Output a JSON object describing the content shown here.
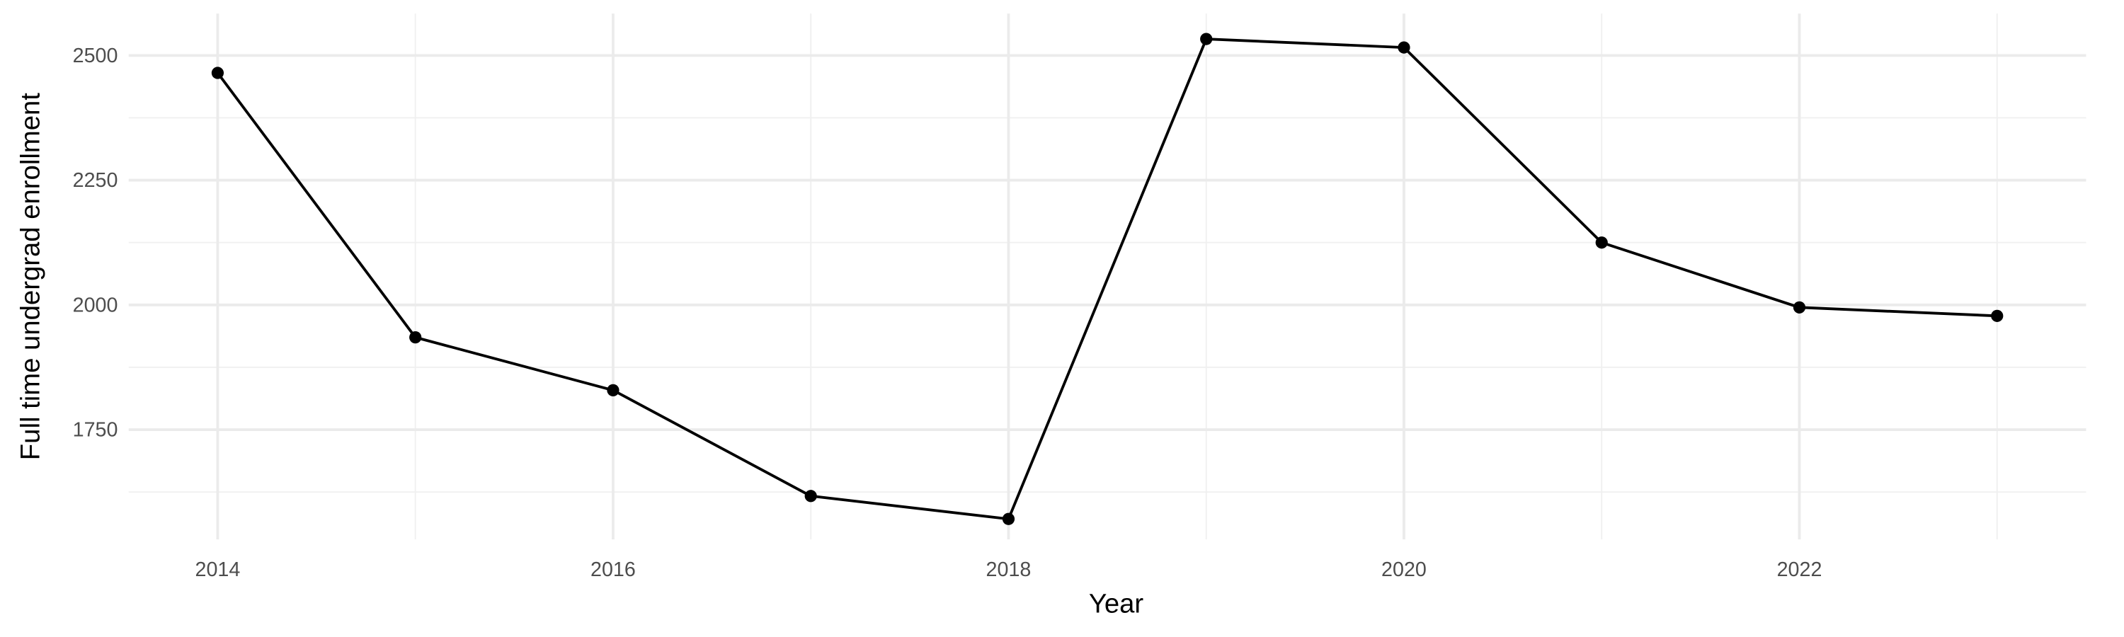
{
  "chart_data": {
    "type": "line",
    "x_label": "Year",
    "y_label": "Full time undergrad enrollment",
    "x": [
      2014,
      2015,
      2016,
      2017,
      2018,
      2019,
      2020,
      2021,
      2022,
      2023
    ],
    "series": [
      {
        "color": "#000000",
        "values": [
          2465,
          1935,
          1829,
          1617,
          1571,
          2533,
          2516,
          2125,
          1995,
          1978
        ]
      }
    ],
    "xlim": [
      2013.55,
      2023.45
    ],
    "xticks": [
      2014,
      2016,
      2018,
      2020,
      2022
    ],
    "minor_xticks": [
      2015,
      2017,
      2019,
      2021,
      2023
    ],
    "ylim": [
      1530,
      2584
    ],
    "yticks": [
      1750,
      2000,
      2250,
      2500
    ],
    "minor_yticks": [
      1625,
      1875,
      2125,
      2375
    ],
    "grid": true
  }
}
